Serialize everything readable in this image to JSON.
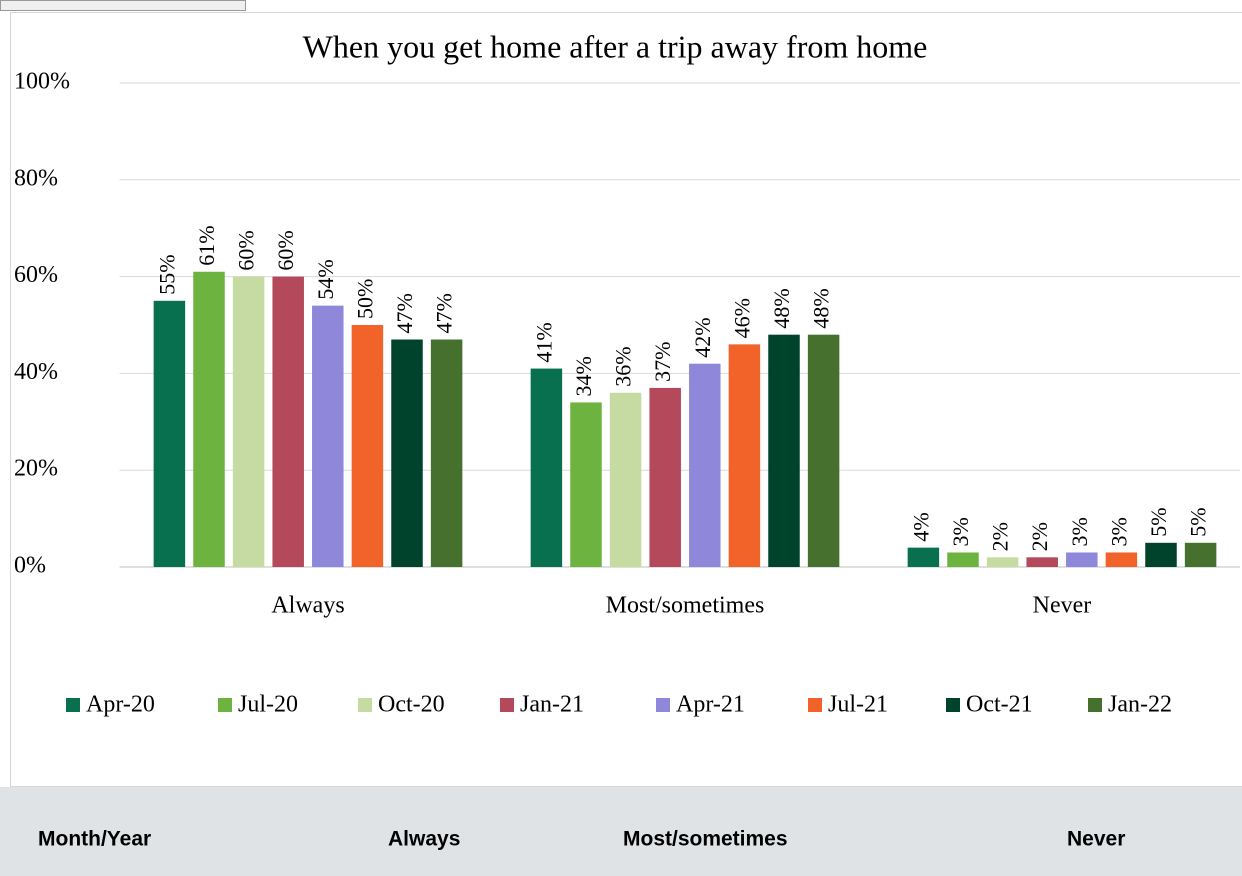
{
  "chart_data": {
    "type": "bar",
    "title": "When you get home after a trip away from home",
    "categories": [
      "Always",
      "Most/sometimes",
      "Never"
    ],
    "series": [
      {
        "name": "Apr-20",
        "color": "#08704f",
        "values": [
          55,
          41,
          4
        ],
        "value_labels": [
          "55%",
          "41%",
          "4%"
        ]
      },
      {
        "name": "Jul-20",
        "color": "#6db33f",
        "values": [
          61,
          34,
          3
        ],
        "value_labels": [
          "61%",
          "34%",
          "3%"
        ]
      },
      {
        "name": "Oct-20",
        "color": "#c6dba2",
        "values": [
          60,
          36,
          2
        ],
        "value_labels": [
          "60%",
          "36%",
          "2%"
        ]
      },
      {
        "name": "Jan-21",
        "color": "#b3495b",
        "values": [
          60,
          37,
          2
        ],
        "value_labels": [
          "60%",
          "37%",
          "2%"
        ]
      },
      {
        "name": "Apr-21",
        "color": "#8f87d9",
        "values": [
          54,
          42,
          3
        ],
        "value_labels": [
          "54%",
          "42%",
          "3%"
        ]
      },
      {
        "name": "Jul-21",
        "color": "#f2632a",
        "values": [
          50,
          46,
          3
        ],
        "value_labels": [
          "50%",
          "46%",
          "3%"
        ]
      },
      {
        "name": "Oct-21",
        "color": "#00432c",
        "values": [
          47,
          48,
          5
        ],
        "value_labels": [
          "47%",
          "48%",
          "5%"
        ]
      },
      {
        "name": "Jan-22",
        "color": "#46702d",
        "values": [
          47,
          48,
          5
        ],
        "value_labels": [
          "47%",
          "48%",
          "5%"
        ]
      }
    ],
    "ylim": [
      0,
      100
    ],
    "yticks": [
      {
        "value": 0,
        "label": "0%"
      },
      {
        "value": 20,
        "label": "20%"
      },
      {
        "value": 40,
        "label": "40%"
      },
      {
        "value": 60,
        "label": "60%"
      },
      {
        "value": 80,
        "label": "80%"
      },
      {
        "value": 100,
        "label": "100%"
      }
    ],
    "grid": true,
    "legend": "bottom"
  },
  "table": {
    "headers": [
      "Month/Year",
      "Always",
      "Most/sometimes",
      "Never"
    ]
  }
}
